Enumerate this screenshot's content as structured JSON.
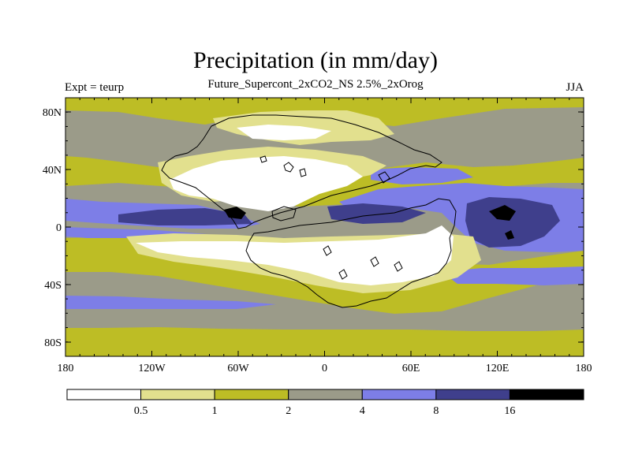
{
  "title": "Precipitation (in mm/day)",
  "subtitle": "Future_Supercont_2xCO2_NS 2.5%_2xOrog",
  "left_label": "Expt = teurp",
  "right_label": "JJA",
  "colors": {
    "lt_0_5": "#ffffff",
    "0_5_to_1": "#e2e08e",
    "1_to_2": "#bdbd25",
    "2_to_4": "#9b9b89",
    "4_to_8": "#7d7ee7",
    "8_to_16": "#3f3f8c",
    "gt_16": "#000000",
    "coast": "#000000"
  },
  "map": {
    "lat_ticks": [
      "80N",
      "40N",
      "0",
      "40S",
      "80S"
    ],
    "lon_ticks": [
      "180",
      "120W",
      "60W",
      "0",
      "60E",
      "120E",
      "180"
    ]
  },
  "legend": {
    "labels": [
      "0.5",
      "1",
      "2",
      "4",
      "8",
      "16"
    ]
  }
}
